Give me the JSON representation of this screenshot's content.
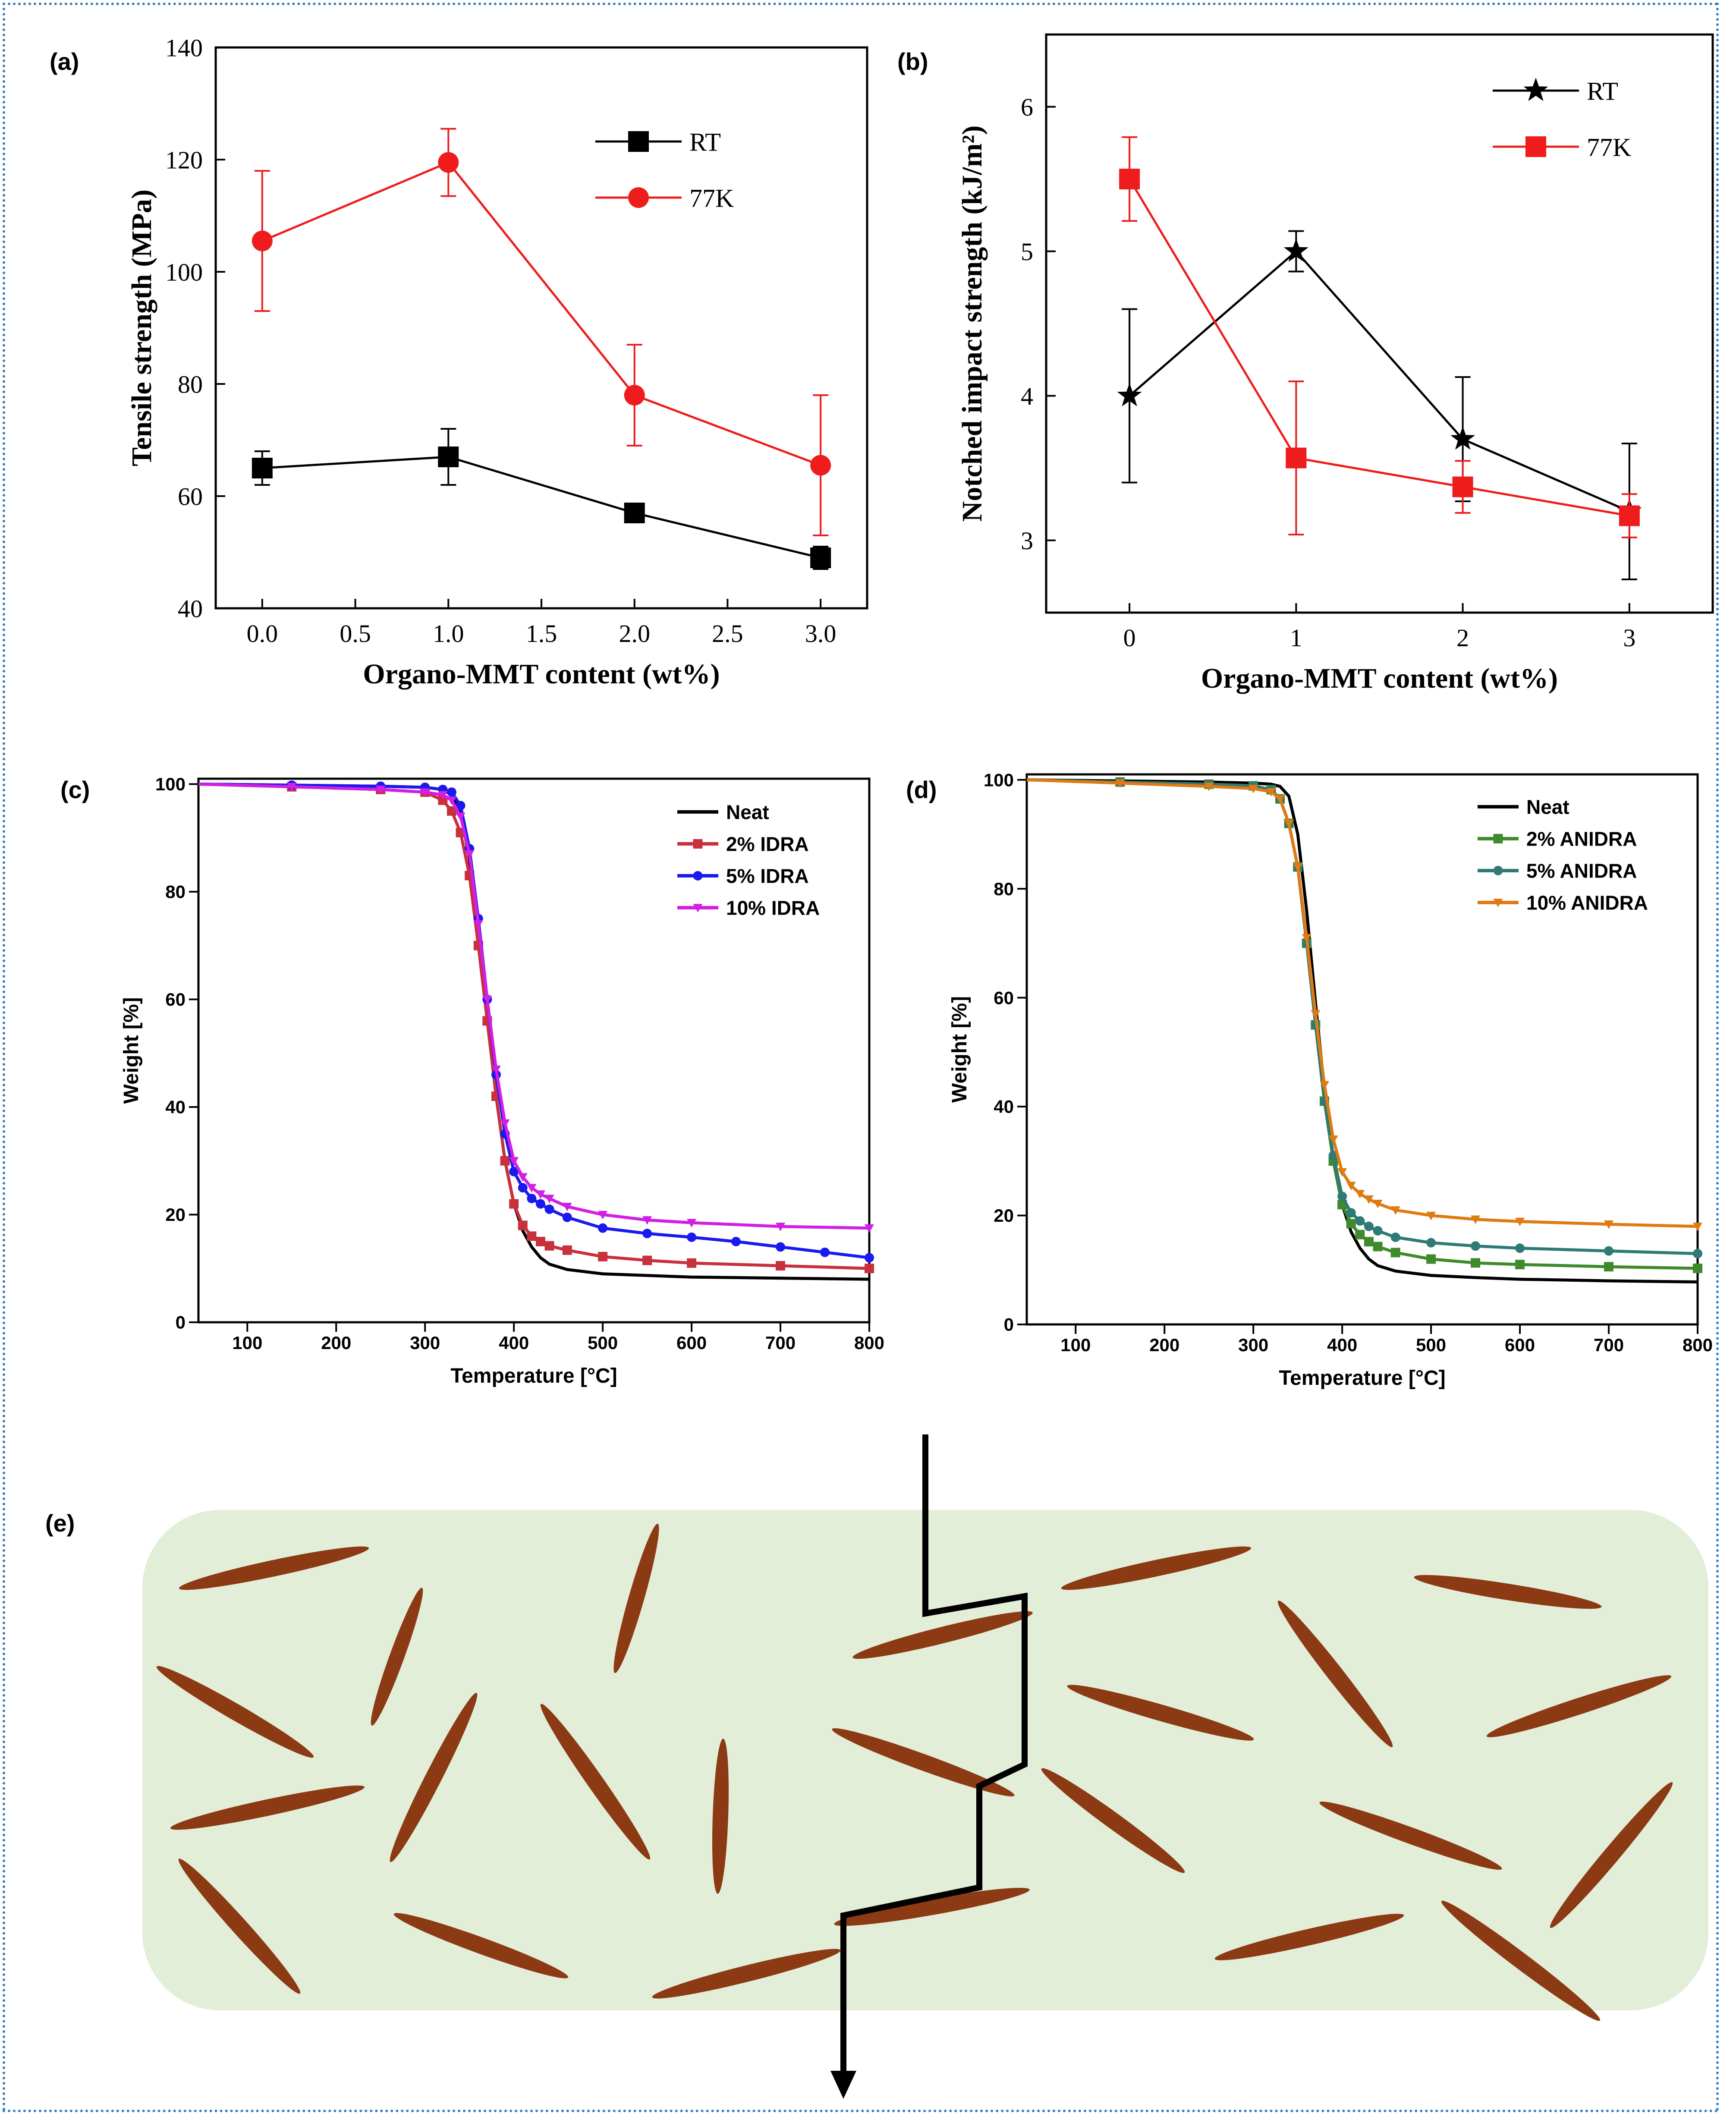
{
  "colors": {
    "rt": "#000000",
    "k77": "#ee1c1c",
    "neat": "#000000",
    "idra2": "#c8303c",
    "idra5": "#1a1aee",
    "idra10": "#d21ee6",
    "anidra2": "#3f8a2b",
    "anidra5": "#2e7a74",
    "anidra10": "#e07a12",
    "matrix": "#e2eed8",
    "platelet": "#8b3a14",
    "crack": "#000000",
    "frame": "#2f7fc0"
  },
  "panels": {
    "a": {
      "label": "(a)"
    },
    "b": {
      "label": "(b)"
    },
    "c": {
      "label": "(c)"
    },
    "d": {
      "label": "(d)"
    },
    "e": {
      "label": "(e)"
    }
  },
  "chart_data": [
    {
      "id": "a",
      "type": "line",
      "title": "",
      "xlabel": "Organo-MMT content (wt%)",
      "ylabel": "Tensile strength (MPa)",
      "xlim": [
        -0.25,
        3.25
      ],
      "ylim": [
        40,
        140
      ],
      "xticks": [
        0.0,
        0.5,
        1.0,
        1.5,
        2.0,
        2.5,
        3.0
      ],
      "xtick_labels": [
        "0.0",
        "0.5",
        "1.0",
        "1.5",
        "2.0",
        "2.5",
        "3.0"
      ],
      "yticks": [
        40,
        60,
        80,
        100,
        120,
        140
      ],
      "legend_position": "top-right",
      "series": [
        {
          "name": "RT",
          "color": "#000000",
          "marker": "square",
          "x": [
            0,
            1,
            2,
            3
          ],
          "y": [
            65,
            67,
            57,
            49
          ],
          "err": [
            3,
            5,
            1,
            2
          ]
        },
        {
          "name": "77K",
          "color": "#ee1c1c",
          "marker": "circle",
          "x": [
            0,
            1,
            2,
            3
          ],
          "y": [
            105.5,
            119.5,
            78,
            65.5
          ],
          "err": [
            12.5,
            6,
            9,
            12.5
          ]
        }
      ]
    },
    {
      "id": "b",
      "type": "line",
      "title": "",
      "xlabel": "Organo-MMT content (wt%)",
      "ylabel": "Notched impact strength (kJ/m²)",
      "xlim": [
        -0.5,
        3.5
      ],
      "ylim": [
        2.5,
        6.5
      ],
      "xticks": [
        0,
        1,
        2,
        3
      ],
      "xtick_labels": [
        "0",
        "1",
        "2",
        "3"
      ],
      "yticks": [
        3,
        4,
        5,
        6
      ],
      "legend_position": "top-right",
      "series": [
        {
          "name": "RT",
          "color": "#000000",
          "marker": "star",
          "x": [
            0,
            1,
            2,
            3
          ],
          "y": [
            4.0,
            5.0,
            3.7,
            3.2
          ],
          "err": [
            0.6,
            0.14,
            0.43,
            0.47
          ]
        },
        {
          "name": "77K",
          "color": "#ee1c1c",
          "marker": "square",
          "x": [
            0,
            1,
            2,
            3
          ],
          "y": [
            5.5,
            3.57,
            3.37,
            3.17
          ],
          "err": [
            0.29,
            0.53,
            0.18,
            0.15
          ]
        }
      ]
    },
    {
      "id": "c",
      "type": "line",
      "title": "",
      "xlabel": "Temperature [°C]",
      "ylabel": "Weight [%]",
      "xlim": [
        45,
        800
      ],
      "ylim": [
        0,
        101
      ],
      "xticks": [
        100,
        200,
        300,
        400,
        500,
        600,
        700,
        800
      ],
      "yticks": [
        0,
        20,
        40,
        60,
        80,
        100
      ],
      "legend_position": "top-right",
      "series": [
        {
          "name": "Neat",
          "color": "#000000",
          "marker": "none",
          "x": [
            45,
            150,
            250,
            300,
            320,
            330,
            340,
            350,
            360,
            370,
            380,
            390,
            400,
            410,
            420,
            430,
            440,
            460,
            500,
            550,
            600,
            700,
            800
          ],
          "y": [
            100,
            99.8,
            99.6,
            99.4,
            99,
            98,
            95,
            86,
            72,
            57,
            42,
            30,
            22,
            17,
            14,
            12,
            10.8,
            9.8,
            9,
            8.7,
            8.4,
            8.2,
            8
          ]
        },
        {
          "name": "2% IDRA",
          "color": "#c8303c",
          "marker": "square",
          "x": [
            45,
            150,
            250,
            300,
            320,
            330,
            340,
            350,
            360,
            370,
            380,
            390,
            400,
            410,
            420,
            430,
            440,
            460,
            500,
            550,
            600,
            700,
            800
          ],
          "y": [
            100,
            99.5,
            99,
            98.5,
            97,
            95,
            91,
            83,
            70,
            56,
            42,
            30,
            22,
            18,
            16,
            15,
            14.2,
            13.4,
            12.2,
            11.5,
            11,
            10.5,
            10
          ]
        },
        {
          "name": "5% IDRA",
          "color": "#1a1aee",
          "marker": "circle",
          "x": [
            45,
            150,
            250,
            300,
            320,
            330,
            340,
            350,
            360,
            370,
            380,
            390,
            400,
            410,
            420,
            430,
            440,
            460,
            500,
            550,
            600,
            650,
            700,
            750,
            800
          ],
          "y": [
            100,
            99.8,
            99.6,
            99.4,
            99,
            98.5,
            96,
            88,
            75,
            60,
            46,
            35,
            28,
            25,
            23,
            22,
            21,
            19.5,
            17.5,
            16.5,
            15.8,
            15,
            14,
            13,
            12
          ]
        },
        {
          "name": "10% IDRA",
          "color": "#d21ee6",
          "marker": "triangle-down",
          "x": [
            45,
            150,
            250,
            300,
            320,
            330,
            340,
            350,
            360,
            370,
            380,
            390,
            400,
            410,
            420,
            430,
            440,
            460,
            500,
            550,
            600,
            700,
            800
          ],
          "y": [
            100,
            99.5,
            99,
            98.5,
            98,
            97,
            94,
            87,
            74,
            60,
            47,
            37,
            30,
            27,
            25,
            23.8,
            23,
            21.5,
            20,
            19,
            18.5,
            17.8,
            17.5
          ]
        }
      ]
    },
    {
      "id": "d",
      "type": "line",
      "title": "",
      "xlabel": "Temperature [°C]",
      "ylabel": "Weight [%]",
      "xlim": [
        45,
        800
      ],
      "ylim": [
        0,
        101
      ],
      "xticks": [
        100,
        200,
        300,
        400,
        500,
        600,
        700,
        800
      ],
      "yticks": [
        0,
        20,
        40,
        60,
        80,
        100
      ],
      "legend_position": "top-right",
      "series": [
        {
          "name": "Neat",
          "color": "#000000",
          "marker": "none",
          "x": [
            45,
            150,
            250,
            300,
            320,
            330,
            340,
            350,
            360,
            370,
            380,
            390,
            400,
            410,
            420,
            430,
            440,
            460,
            500,
            550,
            600,
            700,
            800
          ],
          "y": [
            100,
            99.8,
            99.6,
            99.4,
            99.2,
            98.8,
            97,
            90,
            76,
            59,
            43,
            30,
            22,
            17,
            14,
            12,
            10.8,
            9.8,
            9,
            8.6,
            8.3,
            8,
            7.8
          ]
        },
        {
          "name": "2% ANIDRA",
          "color": "#3f8a2b",
          "marker": "square",
          "x": [
            45,
            150,
            250,
            300,
            320,
            330,
            340,
            350,
            360,
            370,
            380,
            390,
            400,
            410,
            420,
            430,
            440,
            460,
            500,
            550,
            600,
            700,
            800
          ],
          "y": [
            100,
            99.6,
            99.2,
            98.9,
            98.2,
            96.5,
            92,
            84,
            70,
            55,
            41,
            30,
            22,
            18.5,
            16.5,
            15.2,
            14.3,
            13.2,
            12,
            11.3,
            11,
            10.6,
            10.3
          ]
        },
        {
          "name": "5% ANIDRA",
          "color": "#2e7a74",
          "marker": "circle",
          "x": [
            45,
            150,
            250,
            300,
            320,
            330,
            340,
            350,
            360,
            370,
            380,
            390,
            400,
            410,
            420,
            430,
            440,
            460,
            500,
            550,
            600,
            700,
            800
          ],
          "y": [
            100,
            99.6,
            99.2,
            98.9,
            98.2,
            96.5,
            92,
            84,
            70,
            55,
            41,
            31,
            23.5,
            20.5,
            19,
            18,
            17.2,
            16,
            15,
            14.4,
            14,
            13.5,
            13
          ]
        },
        {
          "name": "10% ANIDRA",
          "color": "#e07a12",
          "marker": "triangle-down",
          "x": [
            45,
            150,
            250,
            300,
            320,
            330,
            340,
            350,
            360,
            370,
            380,
            390,
            400,
            410,
            420,
            430,
            440,
            460,
            500,
            550,
            600,
            700,
            800
          ],
          "y": [
            100,
            99.4,
            98.8,
            98.4,
            97.8,
            96.5,
            92,
            84,
            71,
            57,
            44,
            34,
            28,
            25.5,
            24,
            23,
            22.2,
            21,
            20,
            19.3,
            18.9,
            18.4,
            18
          ]
        }
      ]
    }
  ]
}
